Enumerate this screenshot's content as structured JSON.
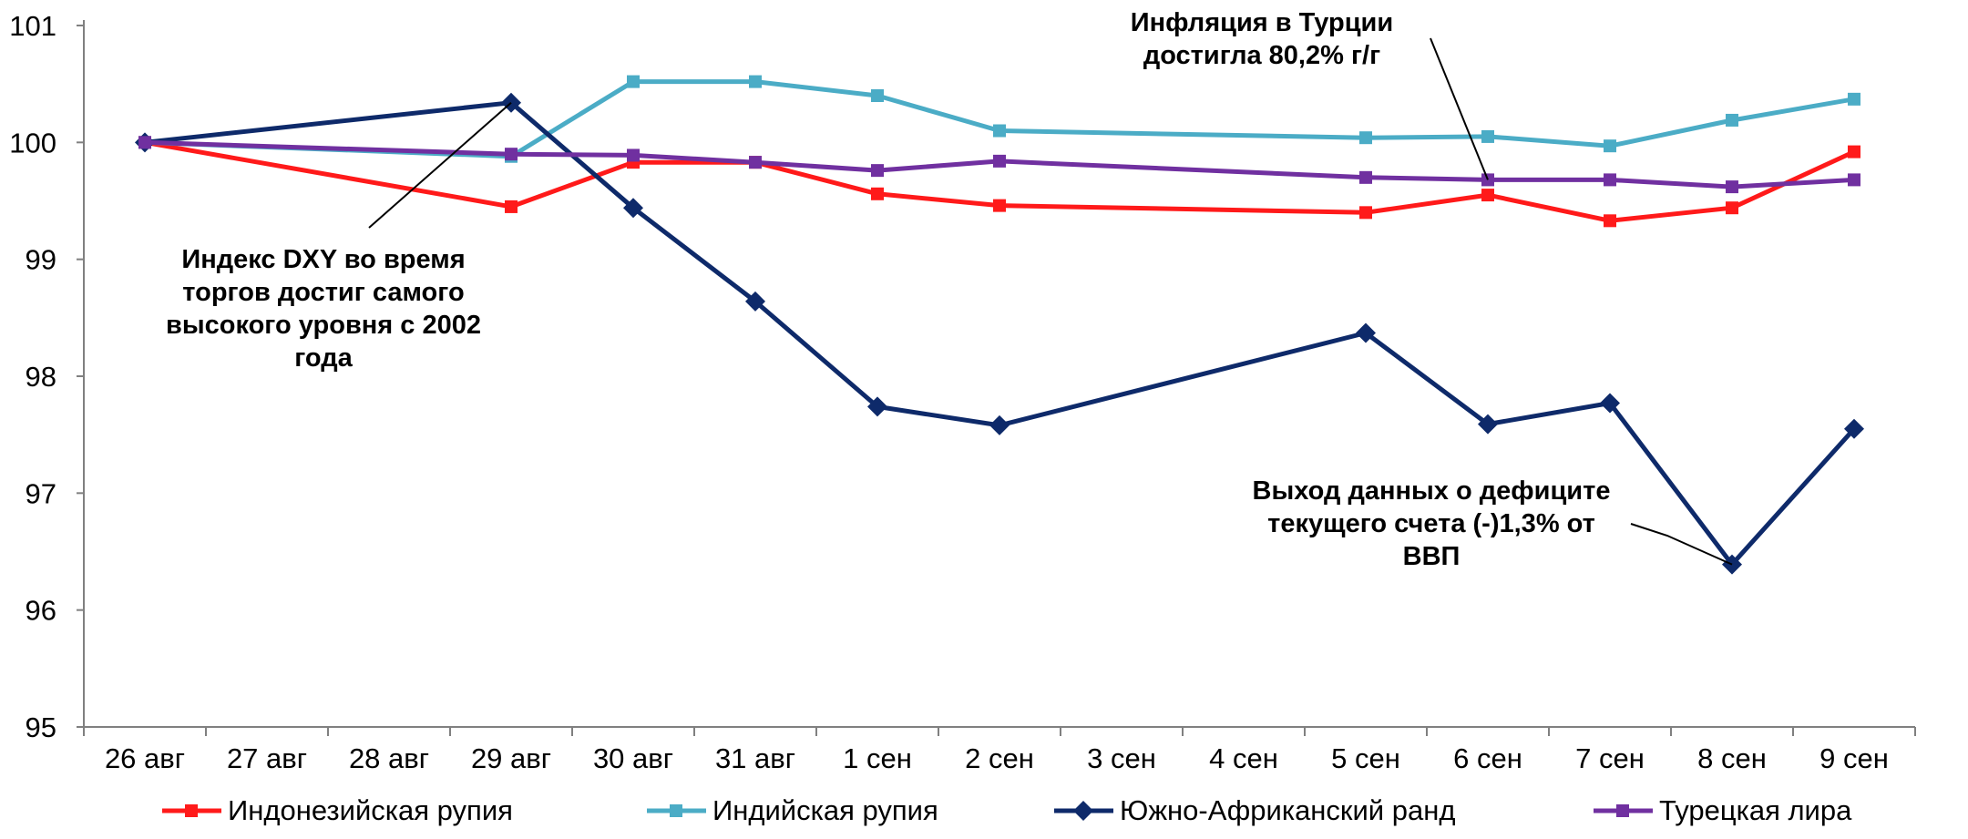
{
  "chart_data": {
    "type": "line",
    "categories": [
      "26 авг",
      "27 авг",
      "28 авг",
      "29 авг",
      "30 авг",
      "31 авг",
      "1 сен",
      "2 сен",
      "3 сен",
      "4 сен",
      "5 сен",
      "6 сен",
      "7 сен",
      "8 сен",
      "9 сен"
    ],
    "ylim": [
      95,
      101
    ],
    "yticks": [
      "95",
      "96",
      "97",
      "98",
      "99",
      "100",
      "101"
    ],
    "grid": false,
    "legend_position": "bottom",
    "series": [
      {
        "name": "Индонезийская рупия",
        "color": "#ff1a1a",
        "marker": "square",
        "points": [
          {
            "x": "26 авг",
            "y": 100.0
          },
          {
            "x": "29 авг",
            "y": 99.45
          },
          {
            "x": "30 авг",
            "y": 99.83
          },
          {
            "x": "31 авг",
            "y": 99.83
          },
          {
            "x": "1 сен",
            "y": 99.56
          },
          {
            "x": "2 сен",
            "y": 99.46
          },
          {
            "x": "5 сен",
            "y": 99.4
          },
          {
            "x": "6 сен",
            "y": 99.55
          },
          {
            "x": "7 сен",
            "y": 99.33
          },
          {
            "x": "8 сен",
            "y": 99.44
          },
          {
            "x": "9 сен",
            "y": 99.92
          }
        ]
      },
      {
        "name": "Индийская рупия",
        "color": "#4bacc6",
        "marker": "square",
        "points": [
          {
            "x": "26 авг",
            "y": 100.0
          },
          {
            "x": "29 авг",
            "y": 99.88
          },
          {
            "x": "30 авг",
            "y": 100.52
          },
          {
            "x": "31 авг",
            "y": 100.52
          },
          {
            "x": "1 сен",
            "y": 100.4
          },
          {
            "x": "2 сен",
            "y": 100.1
          },
          {
            "x": "5 сен",
            "y": 100.04
          },
          {
            "x": "6 сен",
            "y": 100.05
          },
          {
            "x": "7 сен",
            "y": 99.97
          },
          {
            "x": "8 сен",
            "y": 100.19
          },
          {
            "x": "9 сен",
            "y": 100.37
          }
        ]
      },
      {
        "name": "Южно-Африканский ранд",
        "color": "#0e2a6a",
        "marker": "diamond",
        "points": [
          {
            "x": "26 авг",
            "y": 100.0
          },
          {
            "x": "29 авг",
            "y": 100.34
          },
          {
            "x": "30 авг",
            "y": 99.44
          },
          {
            "x": "31 авг",
            "y": 98.64
          },
          {
            "x": "1 сен",
            "y": 97.74
          },
          {
            "x": "2 сен",
            "y": 97.58
          },
          {
            "x": "5 сен",
            "y": 98.37
          },
          {
            "x": "6 сен",
            "y": 97.59
          },
          {
            "x": "7 сен",
            "y": 97.77
          },
          {
            "x": "8 сен",
            "y": 96.39
          },
          {
            "x": "9 сен",
            "y": 97.55
          }
        ]
      },
      {
        "name": "Турецкая лира",
        "color": "#7030a0",
        "marker": "square",
        "points": [
          {
            "x": "26 авг",
            "y": 100.0
          },
          {
            "x": "29 авг",
            "y": 99.9
          },
          {
            "x": "30 авг",
            "y": 99.89
          },
          {
            "x": "31 авг",
            "y": 99.83
          },
          {
            "x": "1 сен",
            "y": 99.76
          },
          {
            "x": "2 сен",
            "y": 99.84
          },
          {
            "x": "5 сен",
            "y": 99.7
          },
          {
            "x": "6 сен",
            "y": 99.68
          },
          {
            "x": "7 сен",
            "y": 99.68
          },
          {
            "x": "8 сен",
            "y": 99.62
          },
          {
            "x": "9 сен",
            "y": 99.68
          }
        ]
      }
    ],
    "annotations": [
      {
        "lines": [
          "Индекс DXY во время",
          "торгов достиг самого",
          "высокого уровня с 2002",
          "года"
        ],
        "target": {
          "x": "29 авг",
          "y": 100.34
        }
      },
      {
        "lines": [
          "Инфляция в Турции",
          "достигла 80,2% г/г"
        ],
        "target": {
          "x": "6 сен",
          "y": 99.68
        }
      },
      {
        "lines": [
          "Выход данных о дефиците",
          "текущего счета (-)1,3% от",
          "ВВП"
        ],
        "target": {
          "x": "8 сен",
          "y": 96.39
        }
      }
    ]
  }
}
